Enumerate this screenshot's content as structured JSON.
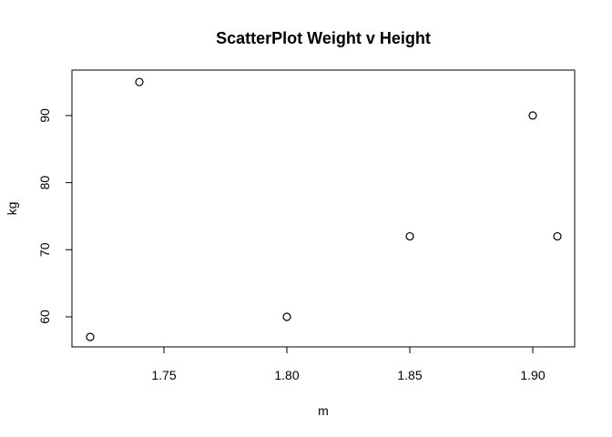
{
  "chart_data": {
    "type": "scatter",
    "title": "ScatterPlot Weight v Height",
    "xlabel": "m",
    "ylabel": "kg",
    "x_ticks": [
      1.75,
      1.8,
      1.85,
      1.9
    ],
    "x_tick_labels": [
      "1.75",
      "1.80",
      "1.85",
      "1.90"
    ],
    "y_ticks": [
      60,
      70,
      80,
      90
    ],
    "y_tick_labels": [
      "60",
      "70",
      "80",
      "90"
    ],
    "grid": false,
    "marker": "open-circle",
    "points": [
      {
        "x": 1.72,
        "y": 57
      },
      {
        "x": 1.74,
        "y": 95
      },
      {
        "x": 1.8,
        "y": 60
      },
      {
        "x": 1.85,
        "y": 72
      },
      {
        "x": 1.9,
        "y": 90
      },
      {
        "x": 1.91,
        "y": 72
      }
    ]
  }
}
